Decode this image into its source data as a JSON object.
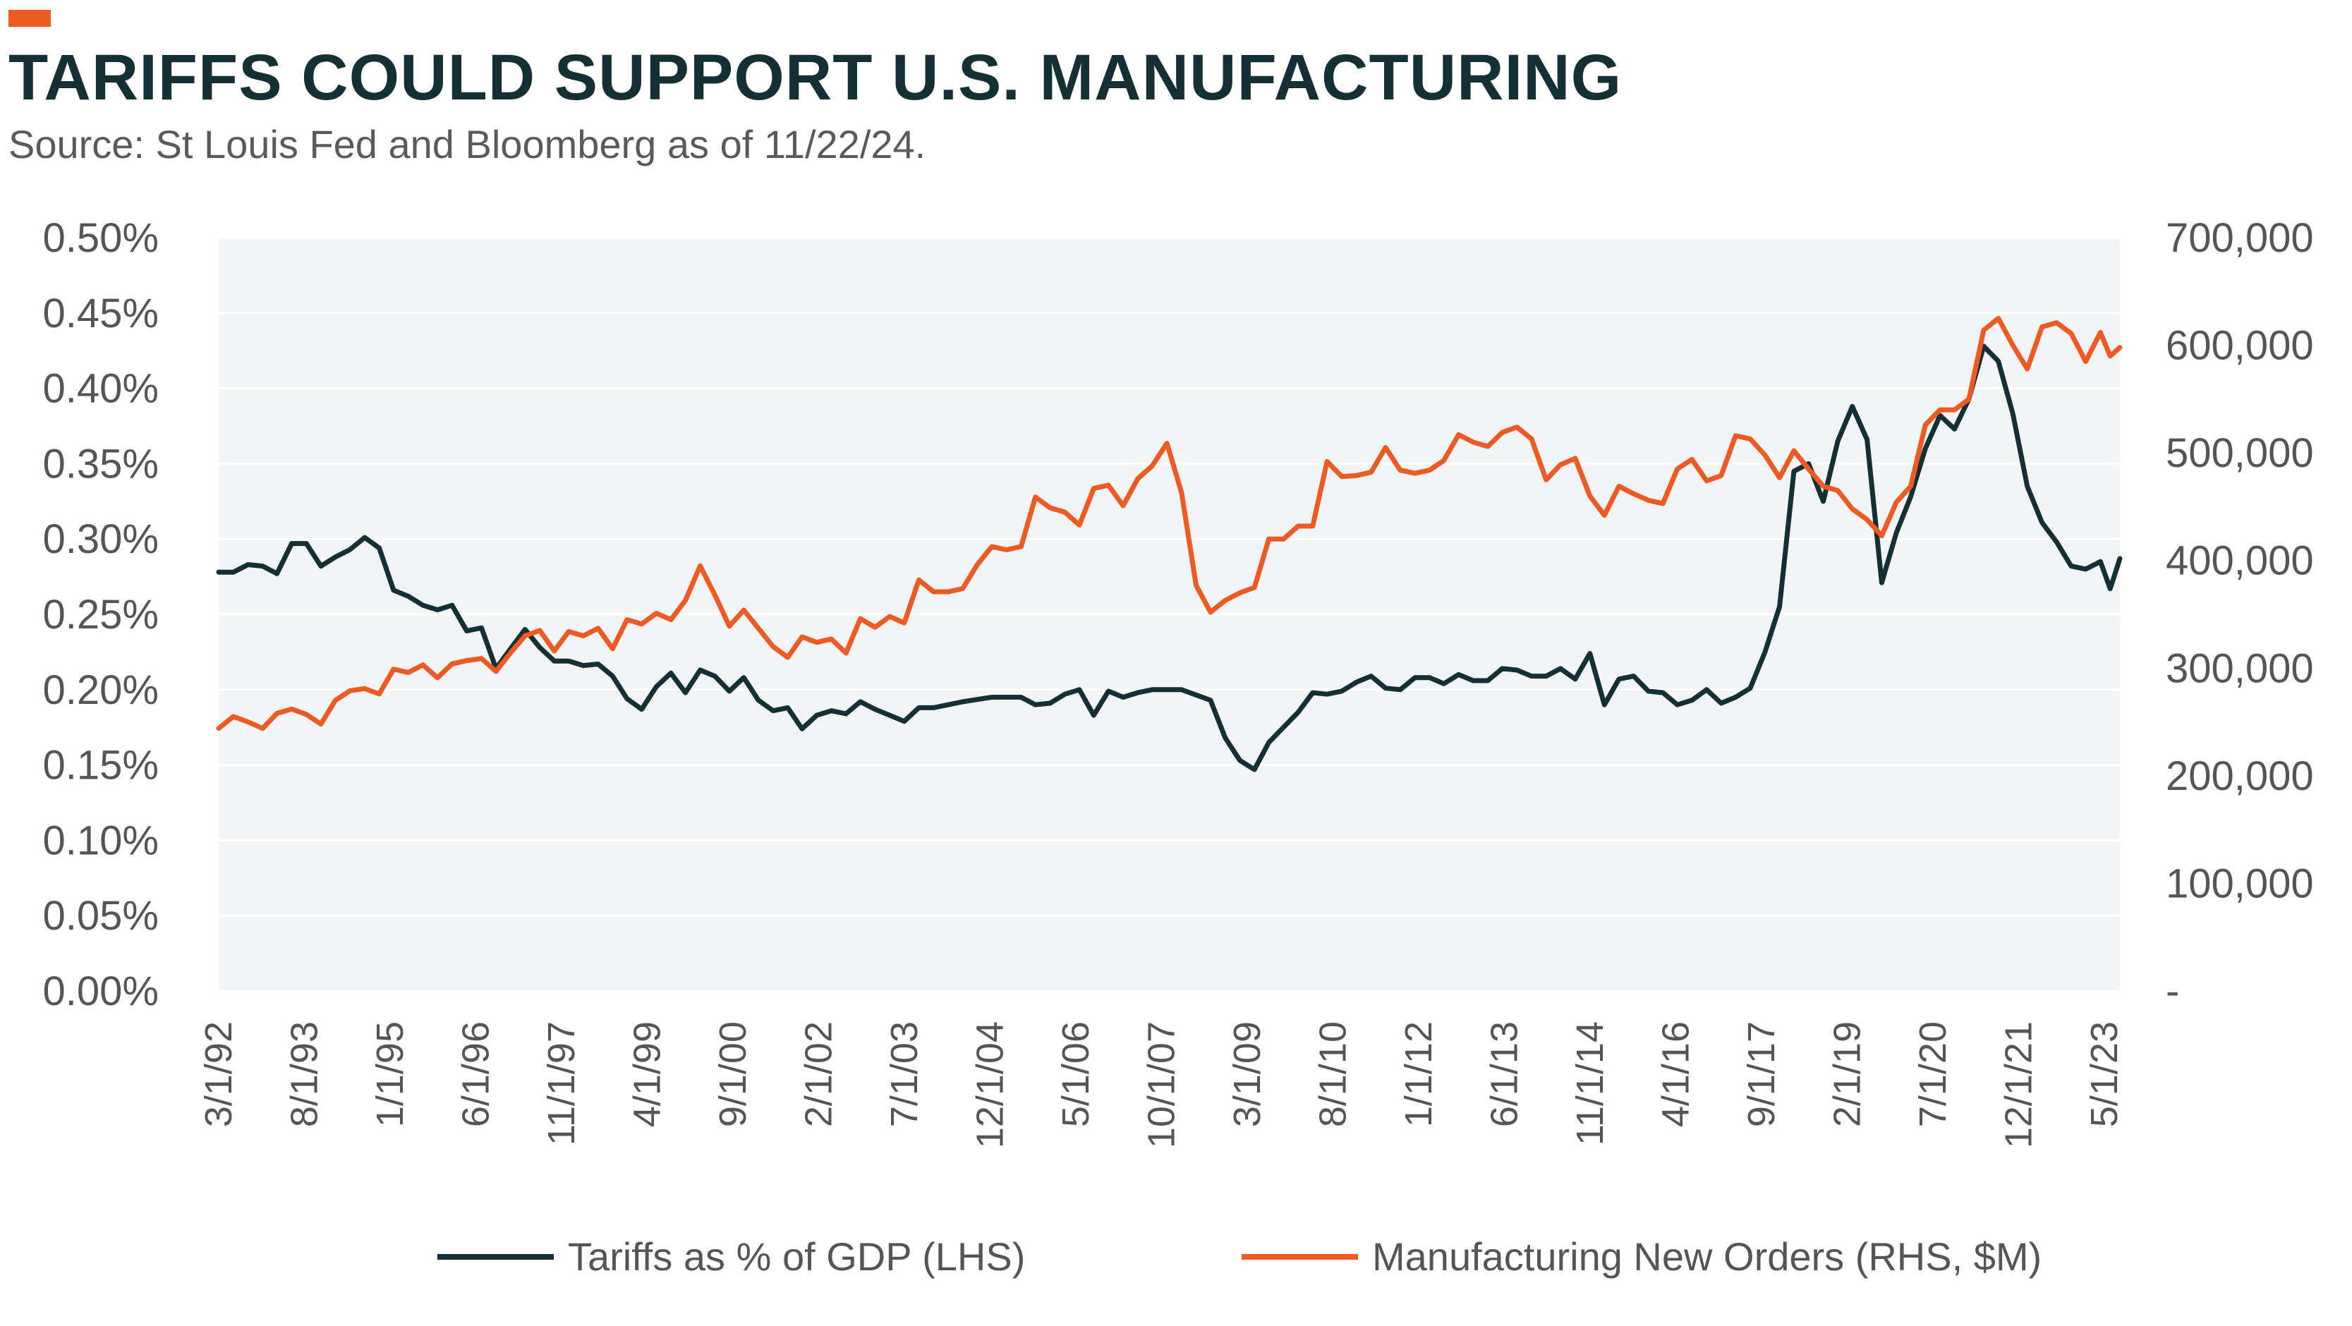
{
  "header": {
    "title": "TARIFFS COULD SUPPORT U.S. MANUFACTURING",
    "subtitle": "Source: St Louis Fed and Bloomberg as of 11/22/24."
  },
  "colors": {
    "accent": "#ee5a24",
    "tariffs_line": "#143034",
    "orders_line": "#ee5a24",
    "plot_background": "#f2f4f5",
    "grid": "#ffffff"
  },
  "chart_data": {
    "type": "line",
    "title": "TARIFFS COULD SUPPORT U.S. MANUFACTURING",
    "subtitle": "Source: St Louis Fed and Bloomberg as of 11/22/24.",
    "x_tick_labels": [
      "3/1/92",
      "8/1/93",
      "1/1/95",
      "6/1/96",
      "11/1/97",
      "4/1/99",
      "9/1/00",
      "2/1/02",
      "7/1/03",
      "12/1/04",
      "5/1/06",
      "10/1/07",
      "3/1/09",
      "8/1/10",
      "1/1/12",
      "6/1/13",
      "11/1/14",
      "4/1/16",
      "9/1/17",
      "2/1/19",
      "7/1/20",
      "12/1/21",
      "5/1/23"
    ],
    "x_range": [
      "1992-03-01",
      "2024-10-01"
    ],
    "y_left": {
      "ticks": [
        "0.00%",
        "0.05%",
        "0.10%",
        "0.15%",
        "0.20%",
        "0.25%",
        "0.30%",
        "0.35%",
        "0.40%",
        "0.45%",
        "0.50%"
      ],
      "range": [
        0,
        0.5
      ],
      "unit": "%"
    },
    "y_right": {
      "ticks": [
        "-",
        "100,000",
        "200,000",
        "300,000",
        "400,000",
        "500,000",
        "600,000",
        "700,000"
      ],
      "range": [
        0,
        700000
      ]
    },
    "grid": true,
    "legend_position": "bottom",
    "series": [
      {
        "name": "Tariffs as % of GDP (LHS)",
        "axis": "left",
        "color": "#143034",
        "points": [
          [
            "1992-03-01",
            0.278
          ],
          [
            "1992-06-01",
            0.278
          ],
          [
            "1992-09-01",
            0.283
          ],
          [
            "1992-12-01",
            0.282
          ],
          [
            "1993-03-01",
            0.277
          ],
          [
            "1993-06-01",
            0.297
          ],
          [
            "1993-09-01",
            0.297
          ],
          [
            "1993-12-01",
            0.282
          ],
          [
            "1994-03-01",
            0.288
          ],
          [
            "1994-06-01",
            0.293
          ],
          [
            "1994-09-01",
            0.301
          ],
          [
            "1994-12-01",
            0.294
          ],
          [
            "1995-03-01",
            0.266
          ],
          [
            "1995-06-01",
            0.262
          ],
          [
            "1995-09-01",
            0.256
          ],
          [
            "1995-12-01",
            0.253
          ],
          [
            "1996-03-01",
            0.256
          ],
          [
            "1996-06-01",
            0.239
          ],
          [
            "1996-09-01",
            0.241
          ],
          [
            "1996-12-01",
            0.214
          ],
          [
            "1997-03-01",
            0.227
          ],
          [
            "1997-06-01",
            0.24
          ],
          [
            "1997-09-01",
            0.228
          ],
          [
            "1997-12-01",
            0.219
          ],
          [
            "1998-03-01",
            0.219
          ],
          [
            "1998-06-01",
            0.216
          ],
          [
            "1998-09-01",
            0.217
          ],
          [
            "1998-12-01",
            0.209
          ],
          [
            "1999-03-01",
            0.194
          ],
          [
            "1999-06-01",
            0.187
          ],
          [
            "1999-09-01",
            0.202
          ],
          [
            "1999-12-01",
            0.211
          ],
          [
            "2000-03-01",
            0.198
          ],
          [
            "2000-06-01",
            0.213
          ],
          [
            "2000-09-01",
            0.209
          ],
          [
            "2000-12-01",
            0.199
          ],
          [
            "2001-03-01",
            0.208
          ],
          [
            "2001-06-01",
            0.193
          ],
          [
            "2001-09-01",
            0.186
          ],
          [
            "2001-12-01",
            0.188
          ],
          [
            "2002-03-01",
            0.174
          ],
          [
            "2002-06-01",
            0.183
          ],
          [
            "2002-09-01",
            0.186
          ],
          [
            "2002-12-01",
            0.184
          ],
          [
            "2003-03-01",
            0.192
          ],
          [
            "2003-06-01",
            0.187
          ],
          [
            "2003-09-01",
            0.183
          ],
          [
            "2003-12-01",
            0.179
          ],
          [
            "2004-03-01",
            0.188
          ],
          [
            "2004-06-01",
            0.188
          ],
          [
            "2004-12-01",
            0.192
          ],
          [
            "2005-06-01",
            0.195
          ],
          [
            "2005-12-01",
            0.195
          ],
          [
            "2006-03-01",
            0.19
          ],
          [
            "2006-06-01",
            0.191
          ],
          [
            "2006-09-01",
            0.197
          ],
          [
            "2006-12-01",
            0.2
          ],
          [
            "2007-03-01",
            0.183
          ],
          [
            "2007-06-01",
            0.199
          ],
          [
            "2007-09-01",
            0.195
          ],
          [
            "2007-12-01",
            0.198
          ],
          [
            "2008-03-01",
            0.2
          ],
          [
            "2008-09-01",
            0.2
          ],
          [
            "2009-03-01",
            0.193
          ],
          [
            "2009-06-01",
            0.168
          ],
          [
            "2009-09-01",
            0.153
          ],
          [
            "2009-12-01",
            0.147
          ],
          [
            "2010-03-01",
            0.165
          ],
          [
            "2010-06-01",
            0.175
          ],
          [
            "2010-09-01",
            0.185
          ],
          [
            "2010-12-01",
            0.198
          ],
          [
            "2011-03-01",
            0.197
          ],
          [
            "2011-06-01",
            0.199
          ],
          [
            "2011-09-01",
            0.205
          ],
          [
            "2011-12-01",
            0.209
          ],
          [
            "2012-03-01",
            0.201
          ],
          [
            "2012-06-01",
            0.2
          ],
          [
            "2012-09-01",
            0.208
          ],
          [
            "2012-12-01",
            0.208
          ],
          [
            "2013-03-01",
            0.204
          ],
          [
            "2013-06-01",
            0.21
          ],
          [
            "2013-09-01",
            0.206
          ],
          [
            "2013-12-01",
            0.206
          ],
          [
            "2014-03-01",
            0.214
          ],
          [
            "2014-06-01",
            0.213
          ],
          [
            "2014-09-01",
            0.209
          ],
          [
            "2014-12-01",
            0.209
          ],
          [
            "2015-03-01",
            0.214
          ],
          [
            "2015-06-01",
            0.207
          ],
          [
            "2015-09-01",
            0.224
          ],
          [
            "2015-12-01",
            0.19
          ],
          [
            "2016-03-01",
            0.207
          ],
          [
            "2016-06-01",
            0.209
          ],
          [
            "2016-09-01",
            0.199
          ],
          [
            "2016-12-01",
            0.198
          ],
          [
            "2017-03-01",
            0.19
          ],
          [
            "2017-06-01",
            0.193
          ],
          [
            "2017-09-01",
            0.2
          ],
          [
            "2017-12-01",
            0.191
          ],
          [
            "2018-03-01",
            0.195
          ],
          [
            "2018-06-01",
            0.201
          ],
          [
            "2018-09-01",
            0.225
          ],
          [
            "2018-12-01",
            0.255
          ],
          [
            "2019-03-01",
            0.345
          ],
          [
            "2019-06-01",
            0.35
          ],
          [
            "2019-09-01",
            0.325
          ],
          [
            "2019-12-01",
            0.365
          ],
          [
            "2020-03-01",
            0.388
          ],
          [
            "2020-06-01",
            0.366
          ],
          [
            "2020-09-01",
            0.271
          ],
          [
            "2020-12-01",
            0.304
          ],
          [
            "2021-03-01",
            0.328
          ],
          [
            "2021-06-01",
            0.36
          ],
          [
            "2021-09-01",
            0.382
          ],
          [
            "2021-12-01",
            0.373
          ],
          [
            "2022-03-01",
            0.393
          ],
          [
            "2022-06-01",
            0.428
          ],
          [
            "2022-09-01",
            0.418
          ],
          [
            "2022-12-01",
            0.383
          ],
          [
            "2023-03-01",
            0.335
          ],
          [
            "2023-06-01",
            0.311
          ],
          [
            "2023-09-01",
            0.298
          ],
          [
            "2023-12-01",
            0.282
          ],
          [
            "2024-03-01",
            0.28
          ],
          [
            "2024-06-01",
            0.285
          ],
          [
            "2024-08-01",
            0.267
          ],
          [
            "2024-10-01",
            0.287
          ]
        ]
      },
      {
        "name": "Manufacturing New Orders (RHS, $M)",
        "axis": "right",
        "color": "#ee5a24",
        "points": [
          [
            "1992-03-01",
            244000
          ],
          [
            "1992-06-01",
            255000
          ],
          [
            "1992-09-01",
            250000
          ],
          [
            "1992-12-01",
            244000
          ],
          [
            "1993-03-01",
            258000
          ],
          [
            "1993-06-01",
            262000
          ],
          [
            "1993-09-01",
            257000
          ],
          [
            "1993-12-01",
            248000
          ],
          [
            "1994-03-01",
            270000
          ],
          [
            "1994-06-01",
            279000
          ],
          [
            "1994-09-01",
            281000
          ],
          [
            "1994-12-01",
            276000
          ],
          [
            "1995-03-01",
            299000
          ],
          [
            "1995-06-01",
            296000
          ],
          [
            "1995-09-01",
            303000
          ],
          [
            "1995-12-01",
            291000
          ],
          [
            "1996-03-01",
            304000
          ],
          [
            "1996-06-01",
            307000
          ],
          [
            "1996-09-01",
            309000
          ],
          [
            "1996-12-01",
            297000
          ],
          [
            "1997-03-01",
            314000
          ],
          [
            "1997-06-01",
            330000
          ],
          [
            "1997-09-01",
            335000
          ],
          [
            "1997-12-01",
            316000
          ],
          [
            "1998-03-01",
            334000
          ],
          [
            "1998-06-01",
            330000
          ],
          [
            "1998-09-01",
            337000
          ],
          [
            "1998-12-01",
            318000
          ],
          [
            "1999-03-01",
            345000
          ],
          [
            "1999-06-01",
            341000
          ],
          [
            "1999-09-01",
            351000
          ],
          [
            "1999-12-01",
            345000
          ],
          [
            "2000-03-01",
            363000
          ],
          [
            "2000-06-01",
            395000
          ],
          [
            "2000-09-01",
            368000
          ],
          [
            "2000-12-01",
            339000
          ],
          [
            "2001-03-01",
            354000
          ],
          [
            "2001-06-01",
            337000
          ],
          [
            "2001-09-01",
            320000
          ],
          [
            "2001-12-01",
            310000
          ],
          [
            "2002-03-01",
            329000
          ],
          [
            "2002-06-01",
            324000
          ],
          [
            "2002-09-01",
            327000
          ],
          [
            "2002-12-01",
            314000
          ],
          [
            "2003-03-01",
            346000
          ],
          [
            "2003-06-01",
            338000
          ],
          [
            "2003-09-01",
            348000
          ],
          [
            "2003-12-01",
            342000
          ],
          [
            "2004-03-01",
            382000
          ],
          [
            "2004-06-01",
            371000
          ],
          [
            "2004-09-01",
            371000
          ],
          [
            "2004-12-01",
            374000
          ],
          [
            "2005-03-01",
            396000
          ],
          [
            "2005-06-01",
            413000
          ],
          [
            "2005-09-01",
            410000
          ],
          [
            "2005-12-01",
            413000
          ],
          [
            "2006-03-01",
            459000
          ],
          [
            "2006-06-01",
            449000
          ],
          [
            "2006-09-01",
            445000
          ],
          [
            "2006-12-01",
            433000
          ],
          [
            "2007-03-01",
            467000
          ],
          [
            "2007-06-01",
            470000
          ],
          [
            "2007-09-01",
            451000
          ],
          [
            "2007-12-01",
            476000
          ],
          [
            "2008-03-01",
            488000
          ],
          [
            "2008-06-01",
            509000
          ],
          [
            "2008-09-01",
            463000
          ],
          [
            "2008-12-01",
            377000
          ],
          [
            "2009-03-01",
            352000
          ],
          [
            "2009-06-01",
            363000
          ],
          [
            "2009-09-01",
            370000
          ],
          [
            "2009-12-01",
            375000
          ],
          [
            "2010-03-01",
            420000
          ],
          [
            "2010-06-01",
            420000
          ],
          [
            "2010-09-01",
            432000
          ],
          [
            "2010-12-01",
            432000
          ],
          [
            "2011-03-01",
            492000
          ],
          [
            "2011-06-01",
            478000
          ],
          [
            "2011-09-01",
            479000
          ],
          [
            "2011-12-01",
            482000
          ],
          [
            "2012-03-01",
            505000
          ],
          [
            "2012-06-01",
            484000
          ],
          [
            "2012-09-01",
            481000
          ],
          [
            "2012-12-01",
            484000
          ],
          [
            "2013-03-01",
            493000
          ],
          [
            "2013-06-01",
            517000
          ],
          [
            "2013-09-01",
            510000
          ],
          [
            "2013-12-01",
            506000
          ],
          [
            "2014-03-01",
            519000
          ],
          [
            "2014-06-01",
            524000
          ],
          [
            "2014-09-01",
            513000
          ],
          [
            "2014-12-01",
            475000
          ],
          [
            "2015-03-01",
            489000
          ],
          [
            "2015-06-01",
            495000
          ],
          [
            "2015-09-01",
            460000
          ],
          [
            "2015-12-01",
            442000
          ],
          [
            "2016-03-01",
            469000
          ],
          [
            "2016-06-01",
            462000
          ],
          [
            "2016-09-01",
            456000
          ],
          [
            "2016-12-01",
            453000
          ],
          [
            "2017-03-01",
            485000
          ],
          [
            "2017-06-01",
            494000
          ],
          [
            "2017-09-01",
            474000
          ],
          [
            "2017-12-01",
            479000
          ],
          [
            "2018-03-01",
            516000
          ],
          [
            "2018-06-01",
            513000
          ],
          [
            "2018-09-01",
            498000
          ],
          [
            "2018-12-01",
            477000
          ],
          [
            "2019-03-01",
            502000
          ],
          [
            "2019-06-01",
            485000
          ],
          [
            "2019-09-01",
            469000
          ],
          [
            "2019-12-01",
            465000
          ],
          [
            "2020-03-01",
            448000
          ],
          [
            "2020-06-01",
            438000
          ],
          [
            "2020-09-01",
            423000
          ],
          [
            "2020-12-01",
            454000
          ],
          [
            "2021-03-01",
            469000
          ],
          [
            "2021-06-01",
            526000
          ],
          [
            "2021-09-01",
            540000
          ],
          [
            "2021-12-01",
            540000
          ],
          [
            "2022-03-01",
            550000
          ],
          [
            "2022-06-01",
            614000
          ],
          [
            "2022-09-01",
            625000
          ],
          [
            "2022-12-01",
            600000
          ],
          [
            "2023-03-01",
            578000
          ],
          [
            "2023-06-01",
            617000
          ],
          [
            "2023-09-01",
            621000
          ],
          [
            "2023-12-01",
            611000
          ],
          [
            "2024-03-01",
            585000
          ],
          [
            "2024-06-01",
            612000
          ],
          [
            "2024-08-01",
            590000
          ],
          [
            "2024-10-01",
            598000
          ]
        ]
      }
    ]
  }
}
